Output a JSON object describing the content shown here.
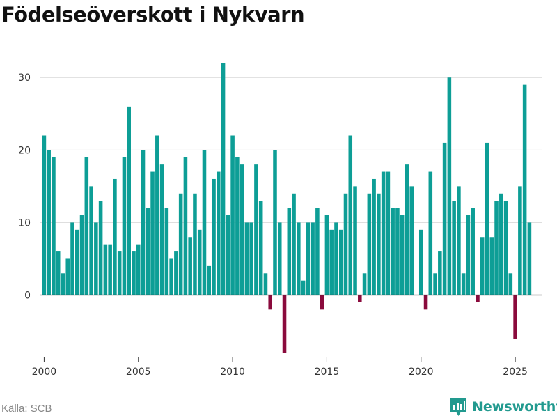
{
  "title": "Födelseöverskott i Nykvarn",
  "source": "Källa: SCB",
  "brand": "Newsworthy",
  "colors": {
    "positive": "#0d9e96",
    "negative": "#8a0a3c",
    "grid": "#d9d9d9",
    "zero_line": "#333333",
    "brand": "#229a8f"
  },
  "icons": {
    "brand_logo": "bar-chart-logo-icon"
  },
  "chart_data": {
    "type": "bar",
    "title": "Födelseöverskott i Nykvarn",
    "xlabel": "",
    "ylabel": "",
    "ylim": [
      -8.5,
      33
    ],
    "xlim": [
      1999.8,
      2026.4
    ],
    "yticks": [
      0,
      10,
      20,
      30
    ],
    "xticks": [
      2000,
      2005,
      2010,
      2015,
      2020,
      2025
    ],
    "grid": true,
    "legend": "none",
    "period": "quarterly",
    "start": "2000 Q1",
    "values": [
      22,
      20,
      19,
      6,
      3,
      5,
      10,
      9,
      11,
      19,
      15,
      10,
      13,
      7,
      7,
      16,
      6,
      19,
      26,
      6,
      7,
      20,
      12,
      17,
      22,
      18,
      12,
      5,
      6,
      14,
      19,
      8,
      14,
      9,
      20,
      4,
      16,
      17,
      32,
      11,
      22,
      19,
      18,
      10,
      10,
      18,
      13,
      3,
      -2,
      20,
      10,
      -8,
      12,
      14,
      10,
      2,
      10,
      10,
      12,
      -2,
      11,
      9,
      10,
      9,
      14,
      22,
      15,
      -1,
      3,
      14,
      16,
      14,
      17,
      17,
      12,
      12,
      11,
      18,
      15,
      0,
      9,
      -2,
      17,
      3,
      6,
      21,
      30,
      13,
      15,
      3,
      11,
      12,
      -1,
      8,
      21,
      8,
      13,
      14,
      13,
      3,
      -6,
      15,
      29,
      10
    ]
  }
}
